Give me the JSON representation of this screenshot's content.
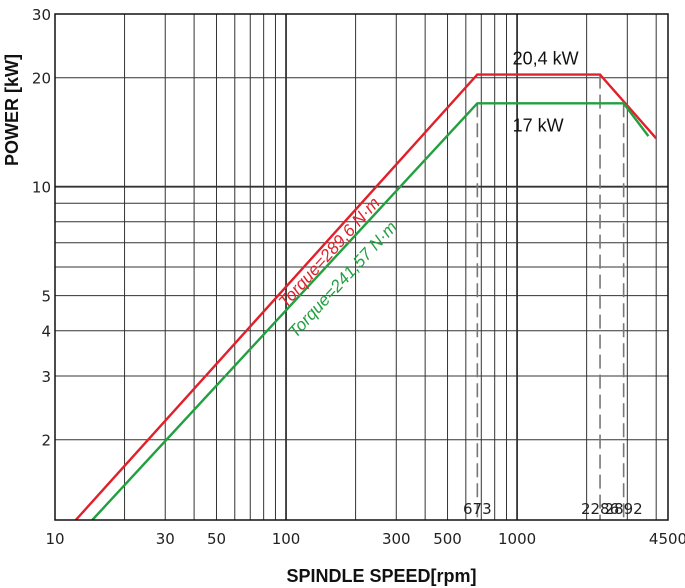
{
  "chart_data": {
    "type": "line",
    "xlabel": "SPINDLE SPEED[rpm]",
    "ylabel": "POWER [kW]",
    "xscale": "log",
    "yscale": "log",
    "xlim": [
      10,
      4500
    ],
    "ylim": [
      1.2,
      30
    ],
    "grid": true,
    "x_ticks": [
      {
        "value": 10,
        "label": "10"
      },
      {
        "value": 30,
        "label": "30"
      },
      {
        "value": 50,
        "label": "50"
      },
      {
        "value": 100,
        "label": "100"
      },
      {
        "value": 300,
        "label": "300"
      },
      {
        "value": 500,
        "label": "500"
      },
      {
        "value": 1000,
        "label": "1000"
      },
      {
        "value": 4500,
        "label": "4500"
      }
    ],
    "y_ticks": [
      {
        "value": 2,
        "label": "2"
      },
      {
        "value": 3,
        "label": "3"
      },
      {
        "value": 4,
        "label": "4"
      },
      {
        "value": 5,
        "label": "5"
      },
      {
        "value": 10,
        "label": "10"
      },
      {
        "value": 20,
        "label": "20"
      },
      {
        "value": 30,
        "label": "30"
      }
    ],
    "series": [
      {
        "color": "#e0202a",
        "points": [
          [
            12.3,
            1.2
          ],
          [
            673,
            20.4
          ],
          [
            2286,
            20.4
          ],
          [
            4000,
            13.6
          ]
        ],
        "torque_label": "Torque=289,6 N·m",
        "power_label": "20,4 kW"
      },
      {
        "color": "#22a040",
        "points": [
          [
            14.5,
            1.2
          ],
          [
            673,
            17
          ],
          [
            2892,
            17
          ],
          [
            3700,
            13.8
          ]
        ],
        "torque_label": "Torque=241,57 N·m",
        "power_label": "17 kW"
      }
    ],
    "markers": [
      {
        "x": 673,
        "label": "673"
      },
      {
        "x": 2286,
        "label": "2286"
      },
      {
        "x": 2892,
        "label": "2892"
      }
    ]
  }
}
